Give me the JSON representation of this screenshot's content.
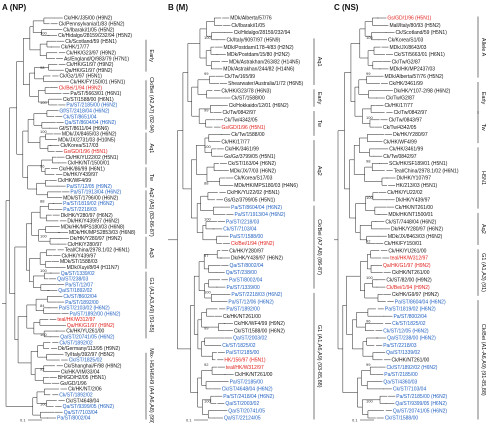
{
  "colors": {
    "black": "#111111",
    "red": "#e0201b",
    "blue": "#1f5fc0"
  },
  "scale_bar_label": "0.1",
  "panels": [
    {
      "key": "np",
      "title": "A (NP)",
      "leaves": [
        {
          "t": "Ck/HK/J35/00 (H9N2)",
          "c": "k"
        },
        {
          "t": "Ck/Pennsylvania/1/83 (H5N2)",
          "c": "k"
        },
        {
          "t": "Ck/Ibaraki/1/05 (H5N2)",
          "c": "k"
        },
        {
          "t": "Ck/Hidalgo/28159/232/94 (H5N2)",
          "c": "k"
        },
        {
          "t": "Ck/Scotland/59 (H5N1)",
          "c": "k"
        },
        {
          "t": "Ck/HK/17/77",
          "c": "k"
        },
        {
          "t": "Ck/HK/G23/97 (H9N2)",
          "c": "k"
        },
        {
          "t": "As/England/Q/983/79 (H7N1)",
          "c": "k"
        },
        {
          "t": "Ck/HK/G1/97 (H9N2)",
          "c": "k"
        },
        {
          "t": "Qa/HK/G1/97 (H9N2)",
          "c": "k"
        },
        {
          "t": "Ck/Gz/1/97 (H5N1)",
          "c": "k"
        },
        {
          "t": "Ck/HK/FY150/01 (H5N1)",
          "c": "k"
        },
        {
          "t": "Ck/Bei/1/94 (H9N2)",
          "c": "r"
        },
        {
          "t": "Pa/ST/5663/01 (H6N1)",
          "c": "k"
        },
        {
          "t": "Ck/ST/1588/00 (H6N1)",
          "c": "k"
        },
        {
          "t": "Pa/ST/2185/00 (H6N2)",
          "c": "b"
        },
        {
          "t": "Gf/ST/2418/04 (H6N2)",
          "c": "b"
        },
        {
          "t": "Ck/ST/8651/04",
          "c": "b"
        },
        {
          "t": "Qa/ST/8604/04 (H6N2)",
          "c": "b"
        },
        {
          "t": "Gf/ST/8611/04 (H6N6)",
          "c": "k"
        },
        {
          "t": "MDk/JX/8465/03 (H6N2)",
          "c": "k"
        },
        {
          "t": "MDk/JX/2731/03 (H10N5)",
          "c": "k"
        },
        {
          "t": "Ck/Korea/S17/03",
          "c": "k"
        },
        {
          "t": "Gs/GD/1/96 (H5N1)",
          "c": "r"
        },
        {
          "t": "Ck/HK/YU22/02 (H5N1)",
          "c": "k"
        },
        {
          "t": "Ck/HK/NT/1500/01",
          "c": "k"
        },
        {
          "t": "Ck/HK/86/99 (H6N1)",
          "c": "k"
        },
        {
          "t": "Dk/HK/Y439/97",
          "c": "k"
        },
        {
          "t": "Ck/HK/WF4/99",
          "c": "k"
        },
        {
          "t": "Pa/ST/12/05 (H9N2)",
          "c": "b"
        },
        {
          "t": "Pa/ST/1913/04 (H6N2)",
          "c": "b"
        },
        {
          "t": "MDk/ST/1796/00 (H6N2)",
          "c": "k"
        },
        {
          "t": "Pa/ST/1819/02 (H6N2)",
          "c": "b"
        },
        {
          "t": "Pa/ST/2218/03",
          "c": "b"
        },
        {
          "t": "Dk/HK/Y280/97 (H6N2)",
          "c": "k"
        },
        {
          "t": "Dk/HK/Y439/97 (H6N2)",
          "c": "k"
        },
        {
          "t": "MDk/HK/MPS180/03 (H6N8)",
          "c": "k"
        },
        {
          "t": "MDk/HK/MPS2853/03 (H6N8)",
          "c": "k"
        },
        {
          "t": "Dk/HK/Y280/97 (H9N2)",
          "c": "k"
        },
        {
          "t": "Ck/HK/Y280/97",
          "c": "k"
        },
        {
          "t": "Teal/China/2978.1/02 (H6N1)",
          "c": "k"
        },
        {
          "t": "Ck/HK/Y439/97",
          "c": "k"
        },
        {
          "t": "MDk/ST/1588/03",
          "c": "k"
        },
        {
          "t": "MDk/Xuyi/8/04 (H11N7)",
          "c": "k"
        },
        {
          "t": "Qa/ST/1339/02",
          "c": "b"
        },
        {
          "t": "Qa/ST/238/03",
          "c": "b"
        },
        {
          "t": "Pa/ST/12/07",
          "c": "b"
        },
        {
          "t": "Qa/ST/1892/02",
          "c": "b"
        },
        {
          "t": "Ck/ST/8602/04",
          "c": "b"
        },
        {
          "t": "Pa/ST/1892/00",
          "c": "b"
        },
        {
          "t": "Pa/ST/2103/02 (H6N2)",
          "c": "b"
        },
        {
          "t": "Pa/ST/1892/00 (H6N2)",
          "c": "b"
        },
        {
          "t": "teal/HK/W312/97",
          "c": "r"
        },
        {
          "t": "Qa/HK/G1/97 (H9N2)",
          "c": "r"
        },
        {
          "t": "Ck/HK/YU261/00",
          "c": "k"
        },
        {
          "t": "Qa/ST/20741/05 (H6N2)",
          "c": "b"
        },
        {
          "t": "Ck/ST/1892/02",
          "c": "b"
        },
        {
          "t": "Dk/Germany/113/95 (H9N2)",
          "c": "k"
        },
        {
          "t": "Ty/Italy/392/97 (H5N2)",
          "c": "k"
        },
        {
          "t": "Ck/ST/1825/02",
          "c": "b"
        },
        {
          "t": "Ck/Shanghai/F/98 (H9N2)",
          "c": "k"
        },
        {
          "t": "Ck/HK/VIM/33/04",
          "c": "k"
        },
        {
          "t": "BH/GD/H2/05 (H5N1)",
          "c": "k"
        },
        {
          "t": "Gs/GD/1/96",
          "c": "k"
        },
        {
          "t": "Ck/HK/NT/2/06",
          "c": "k"
        },
        {
          "t": "Ck/ST/1892/02",
          "c": "b"
        },
        {
          "t": "Ck/ST/4648/04",
          "c": "k"
        },
        {
          "t": "Qa/ST/9399/05 (H6N2)",
          "c": "b"
        },
        {
          "t": "Qa/ST/7103/04",
          "c": "b"
        },
        {
          "t": "Pa/ST/8002/04",
          "c": "b"
        }
      ],
      "clades": [
        {
          "t": "Early",
          "from": 4,
          "to": 9
        },
        {
          "t": "Ck/Bei\n(A2,A7)\n(82-94)",
          "from": 11,
          "to": 19
        },
        {
          "t": "Aq1",
          "from": 20,
          "to": 25
        },
        {
          "t": "Tw",
          "from": 26,
          "to": 29
        },
        {
          "t": "Aq2\n(A5)\n(83-86-87)",
          "from": 30,
          "to": 37
        },
        {
          "t": "Aq3",
          "from": 38,
          "to": 43
        },
        {
          "t": "G1\n(A1,A3,A9)\n(91-85)",
          "from": 44,
          "to": 55
        },
        {
          "t": "Mix- H5/H6/H9\n(A4,A6,A8)\n(99)",
          "from": 58,
          "to": 69
        }
      ],
      "boot": [
        "100",
        "98",
        "100",
        "100",
        "96",
        "88",
        "100",
        "100",
        "84",
        "100",
        "92",
        "100"
      ]
    },
    {
      "key": "m",
      "title": "B (M)",
      "leaves": [
        {
          "t": "MDk/Alberta/57/76",
          "c": "k"
        },
        {
          "t": "Ck/Ibaraki/1/05",
          "c": "k"
        },
        {
          "t": "Ck/Hidalgo/28159/232/94",
          "c": "k"
        },
        {
          "t": "Ck/Italy/9097/97 (H5N9)",
          "c": "k"
        },
        {
          "t": "MDk/Postdam/178-4/83 (H2N2)",
          "c": "k"
        },
        {
          "t": "MDk/Postdam/15/80 (H2N2)",
          "c": "k"
        },
        {
          "t": "MDk/Astrakhan/263/82 (H14N5)",
          "c": "k"
        },
        {
          "t": "MDk/Astrakhan/244/82 (H14N6)",
          "c": "k"
        },
        {
          "t": "Ck/Tw/165/99",
          "c": "k"
        },
        {
          "t": "Shearwater/Australia/1/72 (H6N5)",
          "c": "k"
        },
        {
          "t": "Ck/HK/G23/78 (H6N3)",
          "c": "k"
        },
        {
          "t": "Ck/ST/1588/00",
          "c": "k"
        },
        {
          "t": "Ck/Hokkaido/12/01 (H6N2)",
          "c": "k"
        },
        {
          "t": "Ck/Tw/0842/97",
          "c": "k"
        },
        {
          "t": "Ck/Tw/4342/05",
          "c": "k"
        },
        {
          "t": "Gs/GD/1/96 (H5N1)",
          "c": "r"
        },
        {
          "t": "Ck/Tw/1588/00",
          "c": "k"
        },
        {
          "t": "Ck/HK/17/77",
          "c": "k"
        },
        {
          "t": "Ck/HK/3461/99",
          "c": "k"
        },
        {
          "t": "Gs/Gz/3799/05 (H5N1)",
          "c": "k"
        },
        {
          "t": "Ck/ST/163/04 (H6N2)",
          "c": "k"
        },
        {
          "t": "MDk/JX/7/03 (H6N2)",
          "c": "k"
        },
        {
          "t": "Ck/Korea/S17/03",
          "c": "k"
        },
        {
          "t": "MDk/HK/MPS180/03 (H4N6)",
          "c": "k"
        },
        {
          "t": "Ck/HK/YU22/02 (H5N1)",
          "c": "k"
        },
        {
          "t": "Gs/Gz/3799/05 (H5N1)",
          "c": "k"
        },
        {
          "t": "Pa/ST/8604/04 (H6N2)",
          "c": "b"
        },
        {
          "t": "Pa/ST/1913/04 (H6N2)",
          "c": "b"
        },
        {
          "t": "Pa/ST/2218/03",
          "c": "b"
        },
        {
          "t": "Ck/ST/7103/04",
          "c": "b"
        },
        {
          "t": "Pa/ST/1588/00",
          "c": "b"
        },
        {
          "t": "Ck/Bei/1/94 (H9N2)",
          "c": "r"
        },
        {
          "t": "Ck/HK/Y280/97",
          "c": "k"
        },
        {
          "t": "Dk/HK/Y439/97 (H6N2)",
          "c": "k"
        },
        {
          "t": "Qa/ST/8002/04",
          "c": "b"
        },
        {
          "t": "Qa/ST/238/00",
          "c": "b"
        },
        {
          "t": "Pa/ST/8002/04",
          "c": "b"
        },
        {
          "t": "Pa/ST/1339/00",
          "c": "b"
        },
        {
          "t": "Pa/ST/2218/03 (H6N2)",
          "c": "b"
        },
        {
          "t": "Pa/ST/12/06 (H6N2)",
          "c": "b"
        },
        {
          "t": "Pa/ST/1892/00",
          "c": "b"
        },
        {
          "t": "Ck/HK/NT261/00",
          "c": "k"
        },
        {
          "t": "Ck/HK/WF4/99 (H9N2)",
          "c": "k"
        },
        {
          "t": "Ck/ST/1588/00 (H6N2)",
          "c": "k"
        },
        {
          "t": "Qa/ST/2003/02",
          "c": "b"
        },
        {
          "t": "Ck/ST/1825/02",
          "c": "b"
        },
        {
          "t": "Pa/ST/2185/00",
          "c": "b"
        },
        {
          "t": "HK/156/97 (H5N1)",
          "c": "r"
        },
        {
          "t": "teal/HK/W312/97",
          "c": "r"
        },
        {
          "t": "Ck/HK/NT261/00",
          "c": "k"
        },
        {
          "t": "Pa/ST/2185/00",
          "c": "b"
        },
        {
          "t": "Ck/ST/4648/04 (H6N2)",
          "c": "b"
        },
        {
          "t": "Pa/ST/2418/04 (H6N2)",
          "c": "b"
        },
        {
          "t": "Qa/ST/2003/02",
          "c": "b"
        },
        {
          "t": "Qa/ST/20741/05",
          "c": "b"
        },
        {
          "t": "Qa/ST/22124/05",
          "c": "b"
        }
      ],
      "clades": [
        {
          "t": "Aq1",
          "from": 3,
          "to": 9
        },
        {
          "t": "Early",
          "from": 10,
          "to": 12
        },
        {
          "t": "Tw",
          "from": 13,
          "to": 16
        },
        {
          "t": "Aq2",
          "from": 17,
          "to": 25
        },
        {
          "t": "Ck/Bei\n(A7,A8)\n(86-87)",
          "from": 26,
          "to": 37
        },
        {
          "t": "G1\n(A1,A6,A9)\n(93-85,88)",
          "from": 38,
          "to": 55
        }
      ],
      "boot": [
        "100",
        "99",
        "99",
        "100",
        "88",
        "100",
        "97",
        "100",
        "99",
        "92",
        "100"
      ]
    },
    {
      "key": "ns",
      "title": "C (NS)",
      "leaves": [
        {
          "t": "Gs/GD/1/96 (H5N1)",
          "c": "r"
        },
        {
          "t": "Mall/Italy/80/93 (H5N2)",
          "c": "k"
        },
        {
          "t": "Ck/Scotland/59 (H5N1)",
          "c": "k"
        },
        {
          "t": "Ck/Korea/S1/03",
          "c": "k"
        },
        {
          "t": "MDk/JX/8643/03",
          "c": "k"
        },
        {
          "t": "Ck/ST/5663/01 (H6N1)",
          "c": "k"
        },
        {
          "t": "Ck/Tw/G2/87",
          "c": "k"
        },
        {
          "t": "MDk/HK/MP2437/03",
          "c": "k"
        },
        {
          "t": "MDk/Alberta/57/76 (H5N2)",
          "c": "k"
        },
        {
          "t": "Ck/HK/3461/99",
          "c": "k"
        },
        {
          "t": "Dk/HK/Y107-2/98 (H6N2)",
          "c": "k"
        },
        {
          "t": "Ck/Tw/G2/87",
          "c": "k"
        },
        {
          "t": "Ck/HK/17/77",
          "c": "k"
        },
        {
          "t": "Ck/Tw/0842/97",
          "c": "k"
        },
        {
          "t": "Ck/Tw/0843/97",
          "c": "k"
        },
        {
          "t": "Ck/Tw/4342/05",
          "c": "k"
        },
        {
          "t": "Dk/HK/Y280/97",
          "c": "k"
        },
        {
          "t": "Ck/HK/WF4/99",
          "c": "k"
        },
        {
          "t": "Ck/HK/3461/99",
          "c": "k"
        },
        {
          "t": "Ck/Tw/0842/97",
          "c": "k"
        },
        {
          "t": "SCk/HK/SF189/01 (H5N1)",
          "c": "k"
        },
        {
          "t": "Teal/China/2978.1/02 (H6N1)",
          "c": "k"
        },
        {
          "t": "Dk/HK/Y107/97",
          "c": "k"
        },
        {
          "t": "HK/213/03 (H5N1)",
          "c": "k"
        },
        {
          "t": "Ck/HK/YU22/02",
          "c": "k"
        },
        {
          "t": "Dk/HK/Y439/97",
          "c": "k"
        },
        {
          "t": "Ck/HK/NT261/00",
          "c": "k"
        },
        {
          "t": "MDk/HK/NT1500/01",
          "c": "k"
        },
        {
          "t": "Ck/ST/7448/04 (H6N2)",
          "c": "k"
        },
        {
          "t": "Dk/HK/Y280/97 (H6N2)",
          "c": "k"
        },
        {
          "t": "MDk/JX/8463/03 (H6N2)",
          "c": "k"
        },
        {
          "t": "Ck/HK/FY150/01",
          "c": "k"
        },
        {
          "t": "Ck/HK/YU261/00",
          "c": "k"
        },
        {
          "t": "teal/HK/W312/97",
          "c": "r"
        },
        {
          "t": "Qa/HK/G1/97 (H9N2)",
          "c": "r"
        },
        {
          "t": "Ck/HK/NT261/00",
          "c": "k"
        },
        {
          "t": "Ck/ST/82/00 (H9N2)",
          "c": "k"
        },
        {
          "t": "Ck/Bei/1/94 (H9N2)",
          "c": "r"
        },
        {
          "t": "Ck/HK/G9/97 (H9N2)",
          "c": "k"
        },
        {
          "t": "Pa/ST/8604/04 (H6N2)",
          "c": "b"
        },
        {
          "t": "Pa/ST/1819/02 (H6N2)",
          "c": "b"
        },
        {
          "t": "Pa/ST/8002/04",
          "c": "b"
        },
        {
          "t": "Ck/ST/1825/02",
          "c": "b"
        },
        {
          "t": "Ck/ST/12/05 (H6N2)",
          "c": "b"
        },
        {
          "t": "Qa/ST/238/00 (H6N2)",
          "c": "b"
        },
        {
          "t": "Pa/ST/2218/03",
          "c": "b"
        },
        {
          "t": "Qa/ST/1339/02",
          "c": "b"
        },
        {
          "t": "Ck/HK/NT261/00",
          "c": "k"
        },
        {
          "t": "Ck/ST/1892/02 (H6N2)",
          "c": "b"
        },
        {
          "t": "Pa/ST/2185/00",
          "c": "b"
        },
        {
          "t": "Qa/ST/4360/03",
          "c": "b"
        },
        {
          "t": "Ck/ST/7103/04",
          "c": "b"
        },
        {
          "t": "Pa/ST/2185/00 (H6N2)",
          "c": "b"
        },
        {
          "t": "Qa/ST/9399/05 (H6N2)",
          "c": "b"
        },
        {
          "t": "Qa/ST/20741/05 (H6N2)",
          "c": "b"
        },
        {
          "t": "Ck/ST/1588/00",
          "c": "b"
        }
      ],
      "clades": [
        {
          "t": "Allele A",
          "from": 0,
          "to": 8
        },
        {
          "t": "Early",
          "from": 9,
          "to": 13
        },
        {
          "t": "Tw",
          "from": 13,
          "to": 17
        },
        {
          "t": "H5N1",
          "from": 18,
          "to": 26
        },
        {
          "t": "Aq2",
          "from": 27,
          "to": 31
        },
        {
          "t": "G1\n(A1,A3)\n(91)",
          "from": 32,
          "to": 38
        },
        {
          "t": "Ck/Bei\n(A1-A6,A9)\n(91-85,88)",
          "from": 39,
          "to": 55
        }
      ],
      "boot": [
        "100",
        "99",
        "100",
        "98",
        "100",
        "92",
        "100",
        "96",
        "99",
        "100"
      ]
    }
  ]
}
